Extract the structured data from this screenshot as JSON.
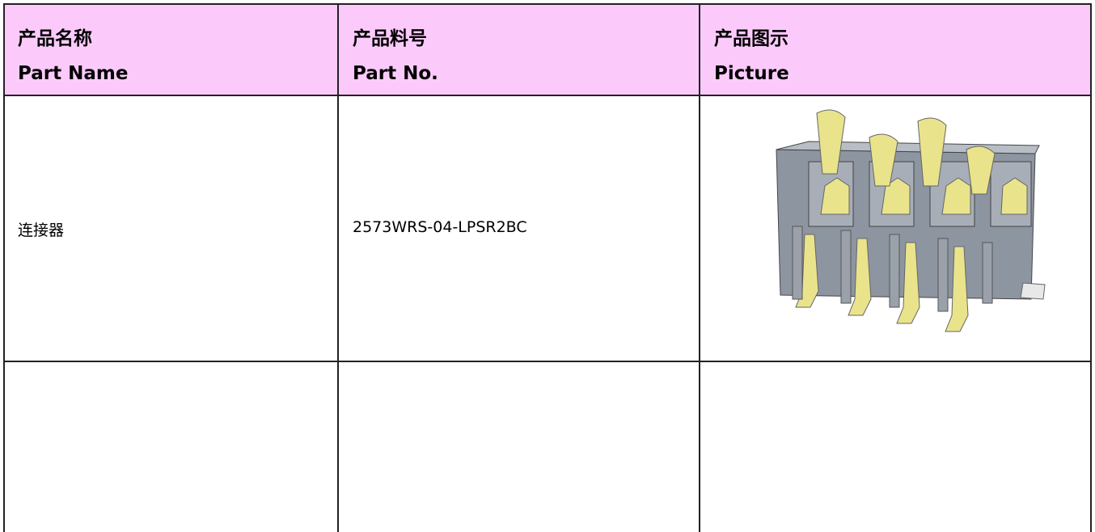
{
  "table": {
    "header": [
      [
        "产品名称",
        "Part Name"
      ],
      [
        "产品料号",
        "Part No."
      ],
      [
        "产品图示",
        "Picture"
      ]
    ],
    "rows": [
      [
        "连接器",
        "2573WRS-04-LPSR2BC"
      ]
    ]
  }
}
